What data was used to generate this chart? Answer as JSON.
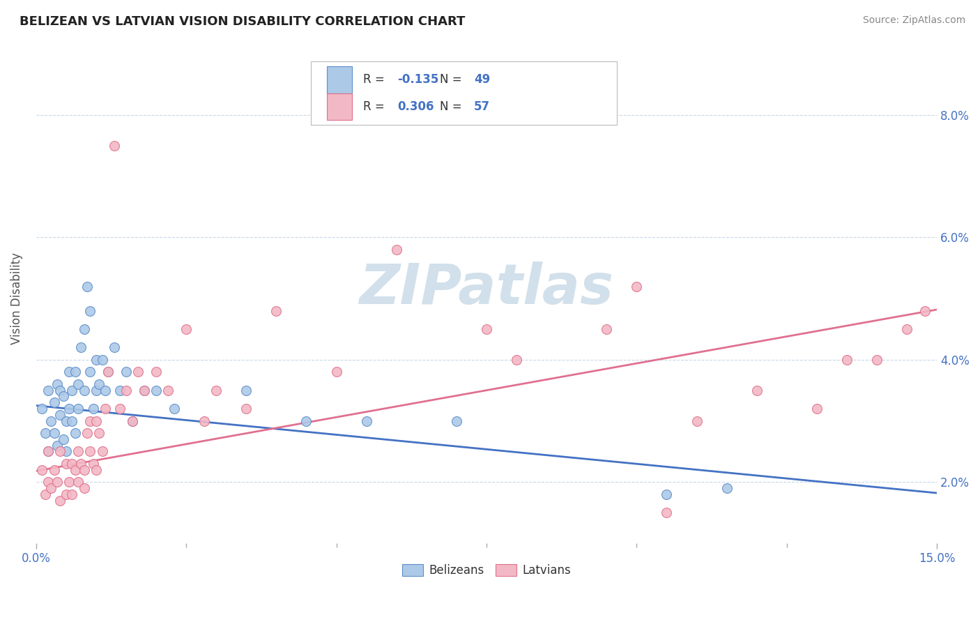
{
  "title": "BELIZEAN VS LATVIAN VISION DISABILITY CORRELATION CHART",
  "source": "Source: ZipAtlas.com",
  "ylabel": "Vision Disability",
  "xlim": [
    0.0,
    15.0
  ],
  "ylim": [
    1.0,
    9.0
  ],
  "xtick_labels": [
    "0.0%",
    "15.0%"
  ],
  "xtick_positions": [
    0.0,
    15.0
  ],
  "ytick_positions": [
    2.0,
    4.0,
    6.0,
    8.0
  ],
  "ytick_labels": [
    "2.0%",
    "4.0%",
    "6.0%",
    "8.0%"
  ],
  "belizean_color": "#adc9e8",
  "latvian_color": "#f2b8c6",
  "belizean_edge_color": "#5b8ec7",
  "latvian_edge_color": "#e0708a",
  "belizean_line_color": "#4472c4",
  "latvian_line_color": "#e07090",
  "R_belizean": -0.135,
  "N_belizean": 49,
  "R_latvian": 0.306,
  "N_latvian": 57,
  "belizean_line_start": 3.25,
  "belizean_line_end": 1.82,
  "latvian_line_start": 2.18,
  "latvian_line_end": 4.82,
  "belizean_x": [
    0.1,
    0.15,
    0.2,
    0.2,
    0.25,
    0.3,
    0.3,
    0.35,
    0.35,
    0.4,
    0.4,
    0.45,
    0.45,
    0.5,
    0.5,
    0.55,
    0.55,
    0.6,
    0.6,
    0.65,
    0.65,
    0.7,
    0.7,
    0.75,
    0.8,
    0.8,
    0.85,
    0.9,
    0.9,
    0.95,
    1.0,
    1.0,
    1.05,
    1.1,
    1.15,
    1.2,
    1.3,
    1.4,
    1.5,
    1.6,
    1.8,
    2.0,
    2.3,
    3.5,
    4.5,
    5.5,
    7.0,
    10.5,
    11.5
  ],
  "belizean_y": [
    3.2,
    2.8,
    3.5,
    2.5,
    3.0,
    2.8,
    3.3,
    3.6,
    2.6,
    3.5,
    3.1,
    2.7,
    3.4,
    3.0,
    2.5,
    3.2,
    3.8,
    3.0,
    3.5,
    3.8,
    2.8,
    3.2,
    3.6,
    4.2,
    4.5,
    3.5,
    5.2,
    3.8,
    4.8,
    3.2,
    3.5,
    4.0,
    3.6,
    4.0,
    3.5,
    3.8,
    4.2,
    3.5,
    3.8,
    3.0,
    3.5,
    3.5,
    3.2,
    3.5,
    3.0,
    3.0,
    3.0,
    1.8,
    1.9
  ],
  "latvian_x": [
    0.1,
    0.15,
    0.2,
    0.2,
    0.25,
    0.3,
    0.35,
    0.4,
    0.4,
    0.5,
    0.5,
    0.55,
    0.6,
    0.6,
    0.65,
    0.7,
    0.7,
    0.75,
    0.8,
    0.8,
    0.85,
    0.9,
    0.9,
    0.95,
    1.0,
    1.0,
    1.05,
    1.1,
    1.15,
    1.2,
    1.3,
    1.4,
    1.5,
    1.6,
    1.7,
    1.8,
    2.0,
    2.2,
    2.5,
    2.8,
    3.0,
    3.5,
    4.0,
    5.0,
    6.0,
    7.5,
    8.0,
    9.5,
    10.0,
    10.5,
    11.0,
    12.0,
    13.0,
    13.5,
    14.0,
    14.5,
    14.8
  ],
  "latvian_y": [
    2.2,
    1.8,
    2.0,
    2.5,
    1.9,
    2.2,
    2.0,
    2.5,
    1.7,
    1.8,
    2.3,
    2.0,
    2.3,
    1.8,
    2.2,
    2.0,
    2.5,
    2.3,
    1.9,
    2.2,
    2.8,
    2.5,
    3.0,
    2.3,
    2.2,
    3.0,
    2.8,
    2.5,
    3.2,
    3.8,
    7.5,
    3.2,
    3.5,
    3.0,
    3.8,
    3.5,
    3.8,
    3.5,
    4.5,
    3.0,
    3.5,
    3.2,
    4.8,
    3.8,
    5.8,
    4.5,
    4.0,
    4.5,
    5.2,
    1.5,
    3.0,
    3.5,
    3.2,
    4.0,
    4.0,
    4.5,
    4.8
  ],
  "watermark_text": "ZIPatlas",
  "watermark_color": "#ccdde8",
  "background_color": "#ffffff",
  "grid_color": "#c8d8e8",
  "tick_label_color": "#4472c4",
  "legend_text_color": "#333333",
  "legend_value_color": "#4472c4"
}
